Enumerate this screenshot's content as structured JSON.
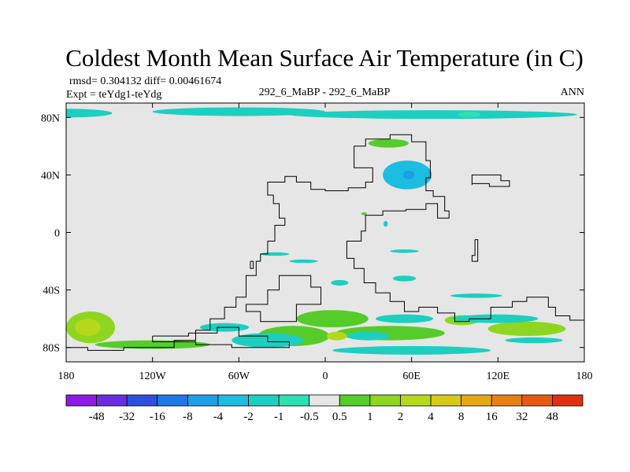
{
  "chart_data": {
    "type": "heatmap",
    "title": "Coldest Month Mean Surface Air Temperature (in C)",
    "stats_text": "rmsd= 0.304132 diff= 0.00461674",
    "left_label": "Expt = teYdg1-teYdg",
    "center_label": "292_6_MaBP - 292_6_MaBP",
    "right_label": "ANN",
    "projection": "cylindrical-equidistant",
    "lon_range": [
      -180,
      180
    ],
    "lat_range": [
      -90,
      90
    ],
    "x_ticks": [
      {
        "value": -180,
        "label": "180"
      },
      {
        "value": -120,
        "label": "120W"
      },
      {
        "value": -60,
        "label": "60W"
      },
      {
        "value": 0,
        "label": "0"
      },
      {
        "value": 60,
        "label": "60E"
      },
      {
        "value": 120,
        "label": "120E"
      },
      {
        "value": 180,
        "label": "180"
      }
    ],
    "y_ticks": [
      {
        "value": 80,
        "label": "80N"
      },
      {
        "value": 40,
        "label": "40N"
      },
      {
        "value": 0,
        "label": "0"
      },
      {
        "value": -40,
        "label": "40S"
      },
      {
        "value": -80,
        "label": "80S"
      }
    ],
    "background_color": "#e6e6e6",
    "colorbar": {
      "colors": [
        "#8f1ae6",
        "#6a2ce0",
        "#2d4fdb",
        "#1e77e6",
        "#1e9ee6",
        "#1cbde0",
        "#1ccfc0",
        "#2ee0b0",
        "#e6e6e6",
        "#55cc2a",
        "#8ed620",
        "#b6d81a",
        "#d8c818",
        "#e6a616",
        "#e67f14",
        "#e65a12",
        "#e0300e"
      ],
      "labels": [
        "-48",
        "-32",
        "-16",
        "-8",
        "-4",
        "-2",
        "-1",
        "-0.5",
        "0.5",
        "1",
        "2",
        "4",
        "8",
        "16",
        "32",
        "48"
      ]
    },
    "anomaly_regions": [
      {
        "name": "arctic-band-west",
        "level": -1,
        "lon": -178,
        "lat": 83,
        "rx": 30,
        "ry": 3
      },
      {
        "name": "arctic-band-center",
        "level": -1,
        "lon": -60,
        "lat": 84,
        "rx": 60,
        "ry": 3
      },
      {
        "name": "arctic-band-east",
        "level": -1,
        "lon": 75,
        "lat": 82,
        "rx": 100,
        "ry": 3
      },
      {
        "name": "arctic-spot",
        "level": -0.5,
        "lon": 100,
        "lat": 82,
        "rx": 8,
        "ry": 2
      },
      {
        "name": "north-continent-rim",
        "level": 1,
        "lon": 44,
        "lat": 62,
        "rx": 14,
        "ry": 3
      },
      {
        "name": "north-continent-cold",
        "level": -2,
        "lon": 57,
        "lat": 40,
        "rx": 17,
        "ry": 10
      },
      {
        "name": "north-continent-core",
        "level": -4,
        "lon": 58,
        "lat": 40,
        "rx": 4,
        "ry": 3
      },
      {
        "name": "tropical-warm",
        "level": 1,
        "lon": 27,
        "lat": 13,
        "rx": 2,
        "ry": 1
      },
      {
        "name": "tropical-cold",
        "level": -1,
        "lon": 42,
        "lat": 6,
        "rx": 1.5,
        "ry": 2
      },
      {
        "name": "south-streak-1",
        "level": -1,
        "lon": -35,
        "lat": -15,
        "rx": 10,
        "ry": 1.2
      },
      {
        "name": "south-streak-2",
        "level": -1,
        "lon": -15,
        "lat": -20,
        "rx": 10,
        "ry": 1.2
      },
      {
        "name": "south-streak-3",
        "level": -1,
        "lon": 55,
        "lat": -13,
        "rx": 10,
        "ry": 1.2
      },
      {
        "name": "south-streak-4",
        "level": -1,
        "lon": 55,
        "lat": -32,
        "rx": 8,
        "ry": 2
      },
      {
        "name": "south-streak-5",
        "level": -1,
        "lon": 10,
        "lat": -35,
        "rx": 6,
        "ry": 2
      },
      {
        "name": "south-streak-6",
        "level": -1,
        "lon": 105,
        "lat": -44,
        "rx": 18,
        "ry": 1.5
      },
      {
        "name": "southern-pacific-warm",
        "level": 2,
        "lon": -163,
        "lat": -66,
        "rx": 17,
        "ry": 11
      },
      {
        "name": "southern-pacific-core",
        "level": 4,
        "lon": -165,
        "lat": -66,
        "rx": 9,
        "ry": 6
      },
      {
        "name": "southern-warm-band-a",
        "level": 1,
        "lon": 5,
        "lat": -60,
        "rx": 25,
        "ry": 6
      },
      {
        "name": "southern-warm-band-b",
        "level": 1,
        "lon": 45,
        "lat": -70,
        "rx": 38,
        "ry": 5
      },
      {
        "name": "southern-warm-band-c",
        "level": 1,
        "lon": -22,
        "lat": -72,
        "rx": 25,
        "ry": 7
      },
      {
        "name": "southern-warm-band-d",
        "level": 2,
        "lon": 95,
        "lat": -61,
        "rx": 12,
        "ry": 3.5
      },
      {
        "name": "southern-warm-band-e",
        "level": 2,
        "lon": 140,
        "lat": -67,
        "rx": 27,
        "ry": 5
      },
      {
        "name": "southern-warm-spot",
        "level": 4,
        "lon": 8,
        "lat": -72,
        "rx": 7,
        "ry": 3
      },
      {
        "name": "southern-cold-a",
        "level": -1,
        "lon": -70,
        "lat": -66,
        "rx": 17,
        "ry": 3
      },
      {
        "name": "southern-cold-b",
        "level": -1,
        "lon": -40,
        "lat": -75,
        "rx": 25,
        "ry": 5
      },
      {
        "name": "southern-cold-c",
        "level": -1,
        "lon": 55,
        "lat": -60,
        "rx": 20,
        "ry": 3
      },
      {
        "name": "southern-cold-d",
        "level": -1,
        "lon": 30,
        "lat": -72,
        "rx": 15,
        "ry": 3
      },
      {
        "name": "southern-cold-e",
        "level": -1,
        "lon": 118,
        "lat": -60,
        "rx": 30,
        "ry": 3
      },
      {
        "name": "southern-cold-f",
        "level": -1,
        "lon": 60,
        "lat": -82,
        "rx": 55,
        "ry": 3
      },
      {
        "name": "southern-cold-g",
        "level": -1,
        "lon": 145,
        "lat": -75,
        "rx": 20,
        "ry": 2
      },
      {
        "name": "southern-warm-edge",
        "level": 1,
        "lon": -120,
        "lat": -78,
        "rx": 40,
        "ry": 3
      }
    ],
    "continent_outlines": [
      {
        "name": "north-continent-outline",
        "points": [
          [
            -28,
            5
          ],
          [
            -28,
            10
          ],
          [
            -32,
            10
          ],
          [
            -32,
            20
          ],
          [
            -36,
            20
          ],
          [
            -36,
            26
          ],
          [
            -40,
            26
          ],
          [
            -40,
            35
          ],
          [
            -28,
            35
          ],
          [
            -28,
            39
          ],
          [
            -20,
            39
          ],
          [
            -20,
            35
          ],
          [
            -10,
            35
          ],
          [
            -10,
            30
          ],
          [
            0,
            30
          ],
          [
            0,
            29
          ],
          [
            16,
            29
          ],
          [
            16,
            31
          ],
          [
            28,
            31
          ],
          [
            28,
            35
          ],
          [
            33,
            35
          ],
          [
            33,
            45
          ],
          [
            20,
            45
          ],
          [
            20,
            60
          ],
          [
            28,
            60
          ],
          [
            28,
            65
          ],
          [
            45,
            65
          ],
          [
            45,
            68
          ],
          [
            60,
            68
          ],
          [
            60,
            63
          ],
          [
            70,
            63
          ],
          [
            70,
            50
          ],
          [
            73,
            50
          ],
          [
            73,
            38
          ],
          [
            70,
            38
          ],
          [
            70,
            29
          ],
          [
            75,
            29
          ],
          [
            75,
            25
          ],
          [
            83,
            25
          ],
          [
            83,
            15
          ],
          [
            86,
            15
          ],
          [
            86,
            10
          ],
          [
            78,
            10
          ],
          [
            78,
            20
          ],
          [
            70,
            20
          ],
          [
            70,
            16
          ],
          [
            56,
            16
          ],
          [
            56,
            15
          ],
          [
            40,
            15
          ],
          [
            40,
            12
          ],
          [
            28,
            12
          ],
          [
            28,
            1
          ],
          [
            25,
            1
          ],
          [
            25,
            -6
          ],
          [
            15,
            -6
          ],
          [
            15,
            -18
          ],
          [
            20,
            -18
          ],
          [
            20,
            -25
          ],
          [
            27,
            -25
          ],
          [
            27,
            -35
          ],
          [
            35,
            -35
          ],
          [
            35,
            -42
          ],
          [
            45,
            -42
          ],
          [
            45,
            -48
          ],
          [
            55,
            -48
          ],
          [
            55,
            -55
          ],
          [
            65,
            -55
          ],
          [
            65,
            -52
          ],
          [
            78,
            -52
          ],
          [
            78,
            -56
          ],
          [
            90,
            -56
          ],
          [
            90,
            -62
          ],
          [
            100,
            -62
          ],
          [
            100,
            -60
          ],
          [
            115,
            -60
          ],
          [
            115,
            -52
          ],
          [
            130,
            -52
          ],
          [
            130,
            -48
          ],
          [
            140,
            -48
          ],
          [
            140,
            -45
          ],
          [
            155,
            -45
          ],
          [
            155,
            -52
          ],
          [
            160,
            -52
          ],
          [
            160,
            -58
          ],
          [
            170,
            -58
          ],
          [
            170,
            -61
          ],
          [
            180,
            -61
          ]
        ]
      },
      {
        "name": "east-island-outline",
        "points": [
          [
            102,
            33
          ],
          [
            102,
            40
          ],
          [
            122,
            40
          ],
          [
            122,
            36
          ],
          [
            128,
            36
          ],
          [
            128,
            32
          ],
          [
            114,
            32
          ],
          [
            114,
            34
          ],
          [
            102,
            34
          ],
          [
            102,
            33
          ]
        ]
      },
      {
        "name": "small-island-outline",
        "points": [
          [
            104,
            -5
          ],
          [
            106,
            -5
          ],
          [
            106,
            -20
          ],
          [
            102,
            -20
          ],
          [
            102,
            -16
          ],
          [
            104,
            -16
          ],
          [
            104,
            -5
          ]
        ]
      },
      {
        "name": "south-continent-outline",
        "points": [
          [
            -180,
            -80
          ],
          [
            -165,
            -80
          ],
          [
            -165,
            -82
          ],
          [
            -140,
            -82
          ],
          [
            -140,
            -80
          ],
          [
            -105,
            -80
          ],
          [
            -105,
            -75
          ],
          [
            -90,
            -75
          ],
          [
            -90,
            -68
          ],
          [
            -80,
            -68
          ],
          [
            -80,
            -60
          ],
          [
            -70,
            -60
          ],
          [
            -70,
            -52
          ],
          [
            -62,
            -52
          ],
          [
            -62,
            -45
          ],
          [
            -55,
            -45
          ],
          [
            -55,
            -30
          ],
          [
            -48,
            -30
          ],
          [
            -48,
            -20
          ],
          [
            -45,
            -20
          ],
          [
            -45,
            -15
          ],
          [
            -40,
            -15
          ],
          [
            -40,
            -6
          ],
          [
            -35,
            -6
          ],
          [
            -35,
            5
          ],
          [
            -28,
            5
          ]
        ]
      },
      {
        "name": "south-inner-outline",
        "points": [
          [
            -55,
            -50
          ],
          [
            -40,
            -50
          ],
          [
            -40,
            -40
          ],
          [
            -32,
            -40
          ],
          [
            -32,
            -30
          ],
          [
            -10,
            -30
          ],
          [
            -10,
            -38
          ],
          [
            -3,
            -38
          ],
          [
            -3,
            -50
          ],
          [
            -20,
            -50
          ],
          [
            -20,
            -62
          ],
          [
            -45,
            -62
          ],
          [
            -45,
            -55
          ],
          [
            -55,
            -55
          ],
          [
            -55,
            -50
          ]
        ]
      },
      {
        "name": "antarctic-shelf-outline",
        "points": [
          [
            -120,
            -72
          ],
          [
            -95,
            -72
          ],
          [
            -95,
            -70
          ],
          [
            -75,
            -70
          ],
          [
            -75,
            -66
          ],
          [
            -60,
            -66
          ],
          [
            -60,
            -72
          ],
          [
            -40,
            -72
          ],
          [
            -40,
            -76
          ],
          [
            -25,
            -76
          ],
          [
            -25,
            -80
          ],
          [
            -65,
            -80
          ],
          [
            -65,
            -78
          ],
          [
            -90,
            -78
          ],
          [
            -90,
            -76
          ],
          [
            -120,
            -76
          ],
          [
            -120,
            -72
          ]
        ]
      },
      {
        "name": "pacific-island-outline",
        "points": [
          [
            -52,
            -20
          ],
          [
            -50,
            -20
          ],
          [
            -50,
            -25
          ],
          [
            -52,
            -25
          ],
          [
            -52,
            -20
          ]
        ]
      }
    ]
  }
}
